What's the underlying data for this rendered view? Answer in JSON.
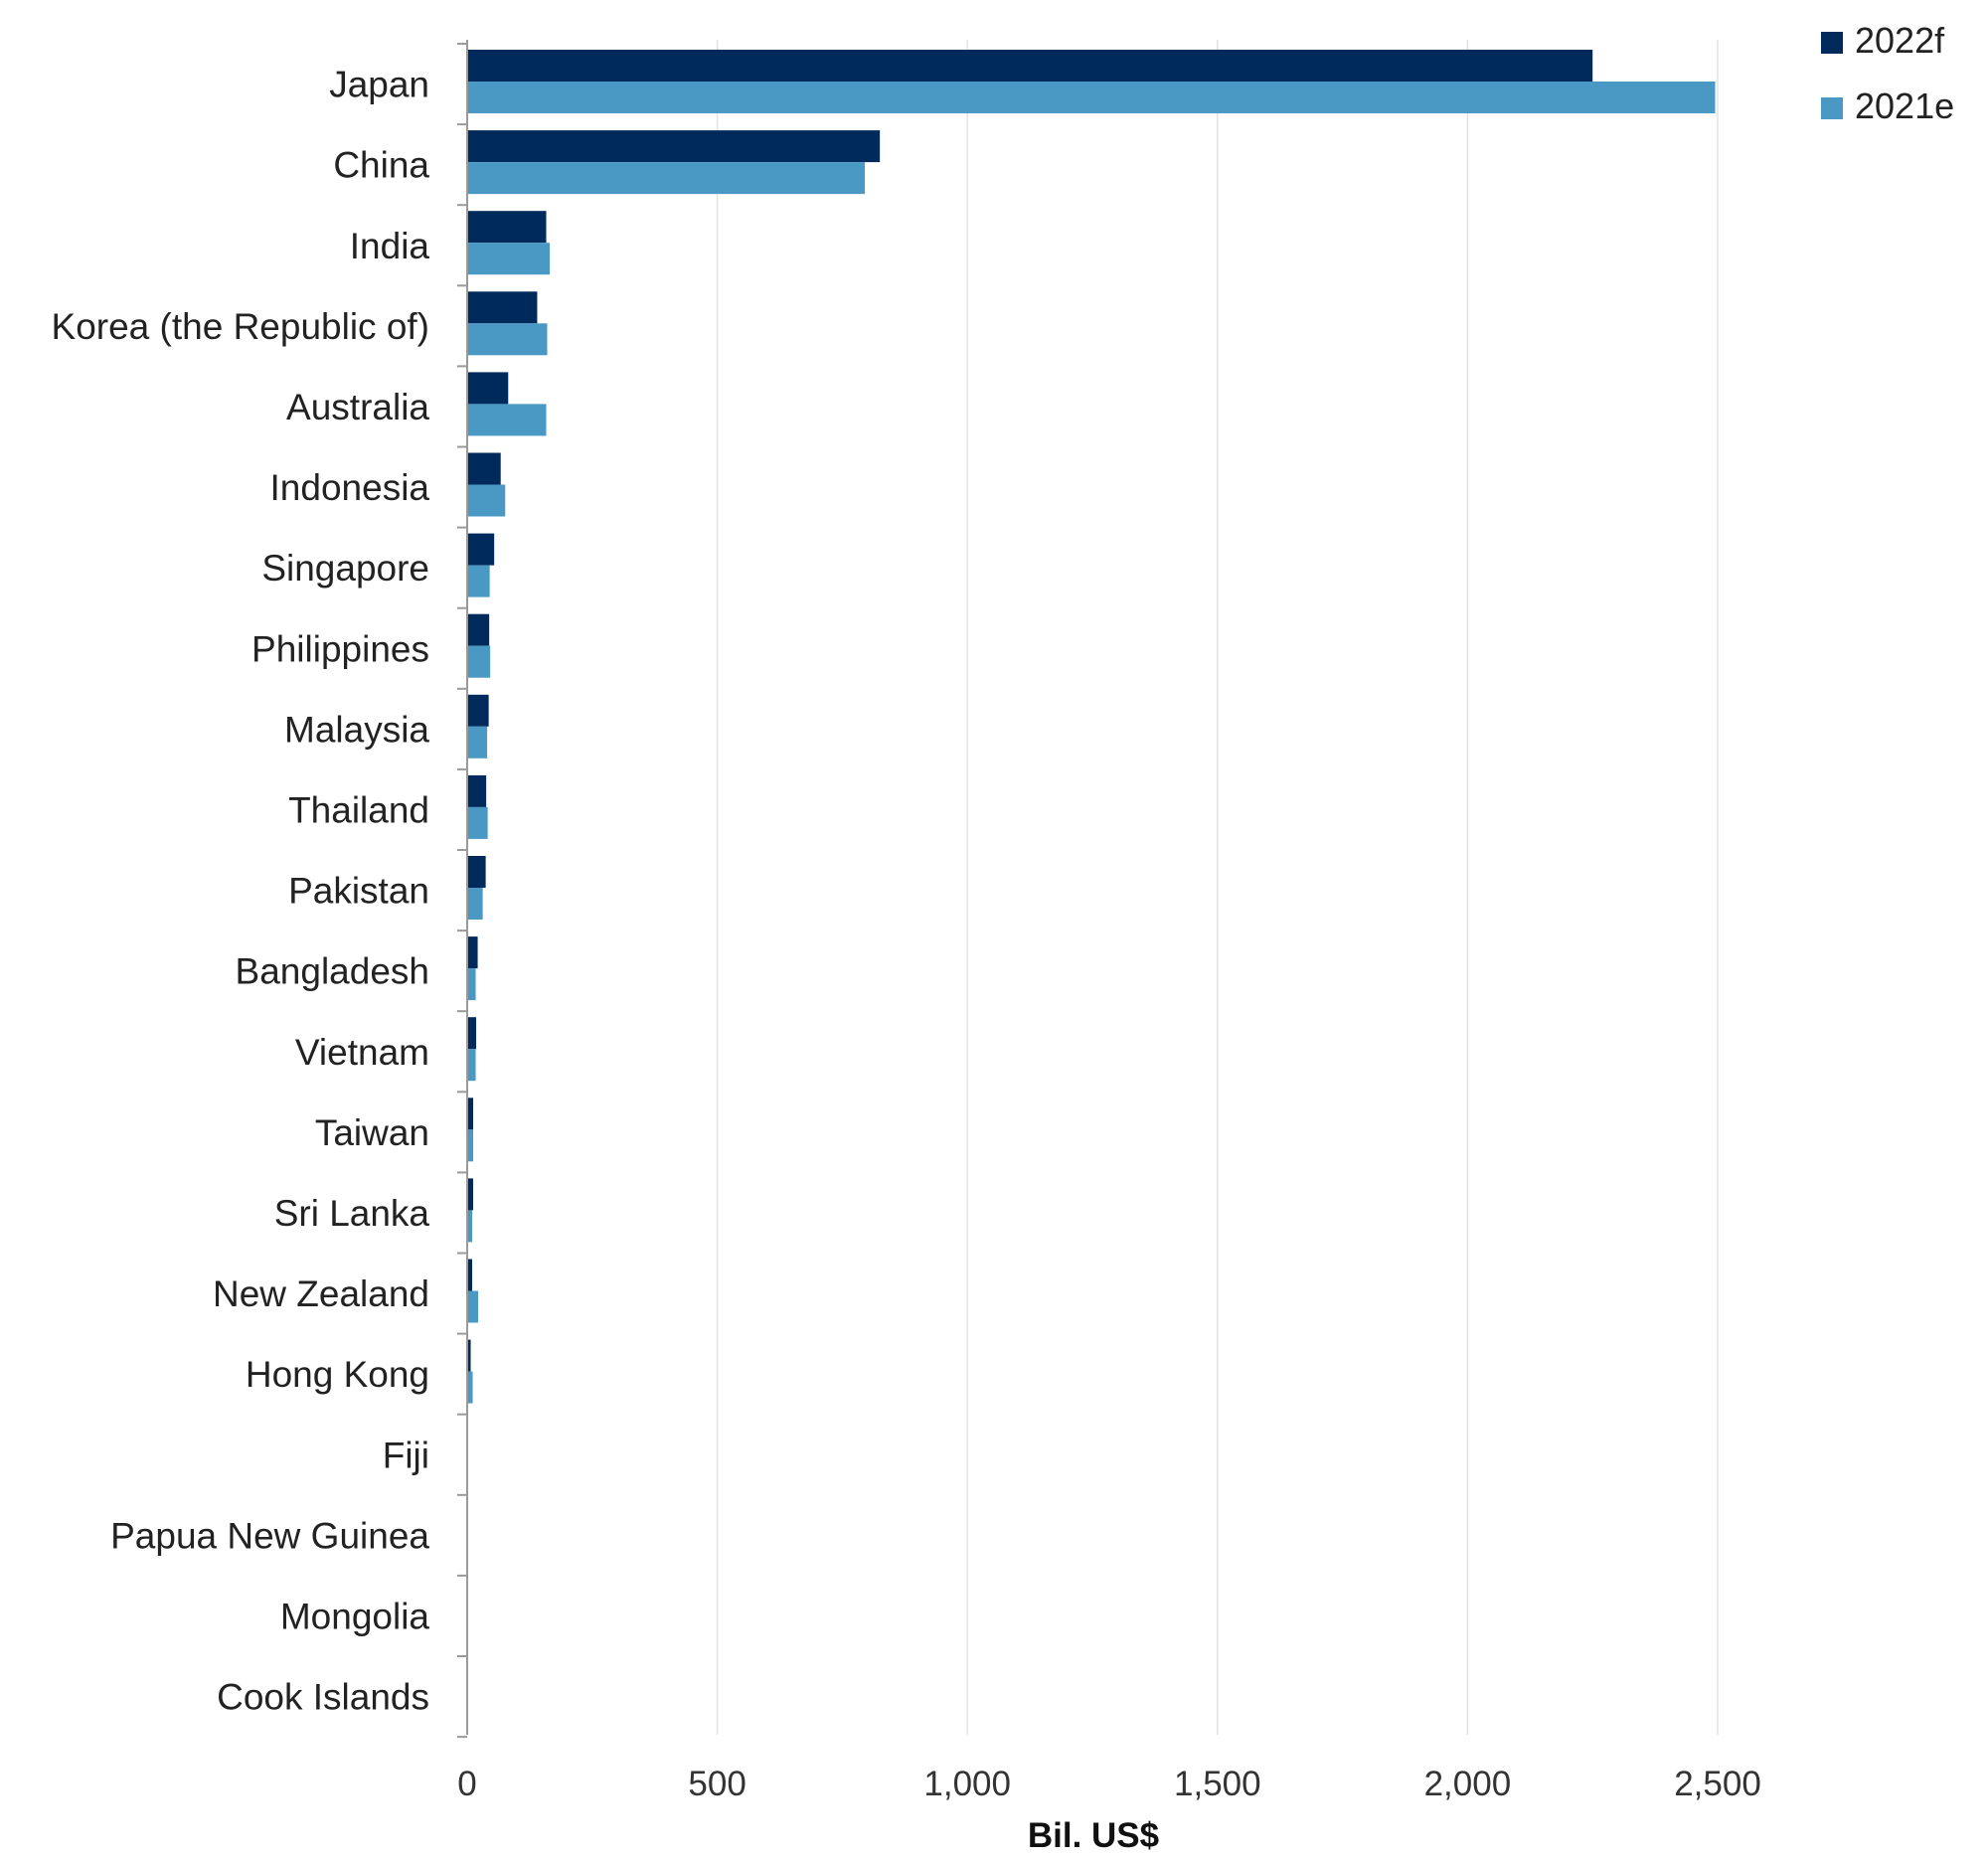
{
  "chart_data": {
    "type": "bar",
    "orientation": "horizontal",
    "categories": [
      "Japan",
      "China",
      "India",
      "Korea (the Republic of)",
      "Australia",
      "Indonesia",
      "Singapore",
      "Philippines",
      "Malaysia",
      "Thailand",
      "Pakistan",
      "Bangladesh",
      "Vietnam",
      "Taiwan",
      "Sri Lanka",
      "New Zealand",
      "Hong Kong",
      "Fiji",
      "Papua New Guinea",
      "Mongolia",
      "Cook Islands"
    ],
    "series": [
      {
        "name": "2022f",
        "color": "#002a5c",
        "values": [
          2250,
          825,
          158,
          140,
          82,
          67,
          54,
          44,
          43,
          38,
          37,
          21,
          18,
          12,
          12,
          10,
          7,
          0,
          0,
          0,
          0
        ]
      },
      {
        "name": "2021e",
        "color": "#4a98c4",
        "values": [
          2495,
          795,
          165,
          160,
          158,
          76,
          45,
          46,
          40,
          41,
          31,
          17,
          17,
          12,
          10,
          22,
          11,
          0,
          0,
          0,
          0
        ]
      }
    ],
    "xlabel": "Bil. US$",
    "xlim": [
      0,
      2500
    ],
    "xticks": [
      0,
      500,
      1000,
      1500,
      2000,
      2500
    ],
    "xtick_labels": [
      "0",
      "500",
      "1,000",
      "1,500",
      "2,000",
      "2,500"
    ],
    "grid": true,
    "legend_position": "top-right"
  }
}
